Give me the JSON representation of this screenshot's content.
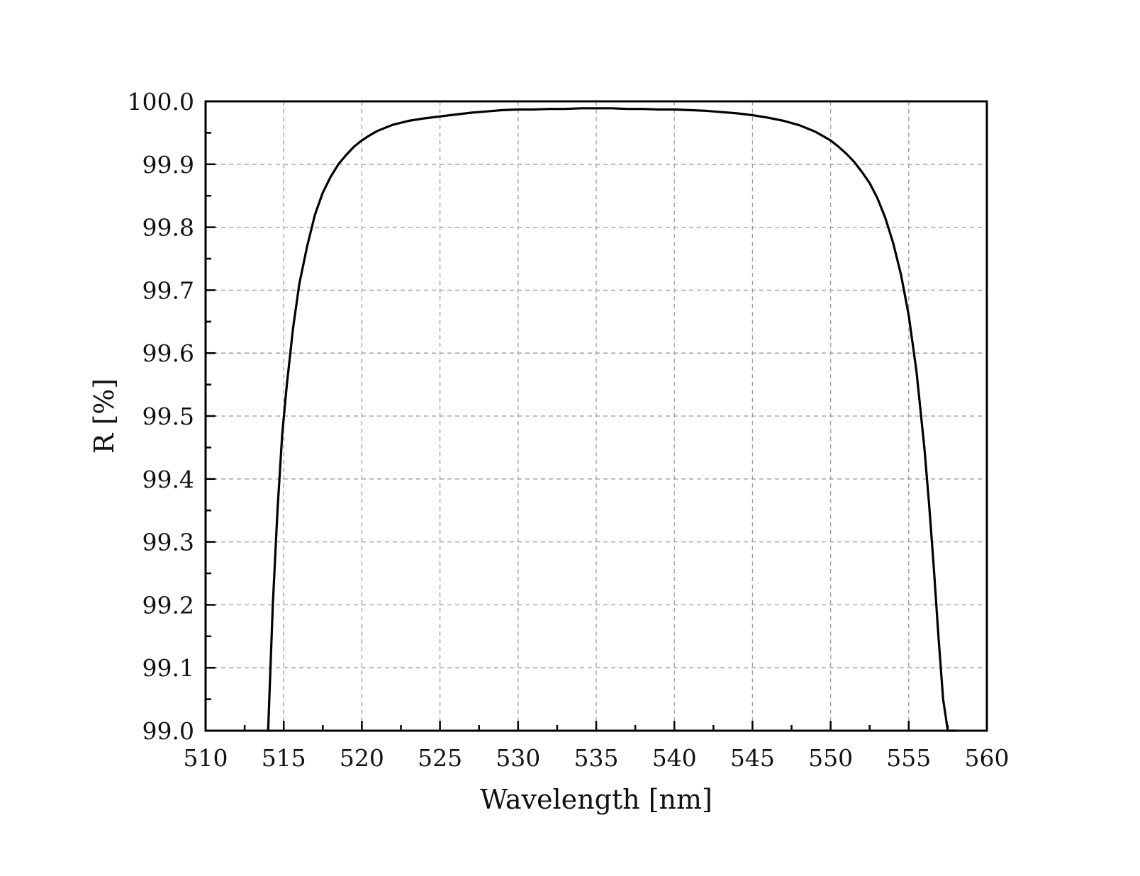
{
  "chart_data": {
    "type": "line",
    "title": "",
    "xlabel": "Wavelength [nm]",
    "ylabel": "R [%]",
    "xlim": [
      510,
      560
    ],
    "ylim": [
      99.0,
      100.0
    ],
    "x_ticks": [
      "510",
      "515",
      "520",
      "525",
      "530",
      "535",
      "540",
      "545",
      "550",
      "555",
      "560"
    ],
    "y_ticks": [
      "99.0",
      "99.1",
      "99.2",
      "99.3",
      "99.4",
      "99.5",
      "99.6",
      "99.7",
      "99.8",
      "99.9",
      "100.0"
    ],
    "grid": true,
    "legend": "none",
    "line_color": "#000000",
    "series": [
      {
        "x": [
          514.0,
          514.3,
          514.6,
          514.9,
          515.2,
          515.6,
          516.0,
          516.5,
          517.0,
          517.5,
          518.0,
          518.5,
          519.0,
          519.5,
          520.0,
          520.5,
          521.0,
          522.0,
          523.0,
          524.0,
          525.0,
          526.0,
          527.0,
          528.0,
          529.0,
          530.0,
          531.0,
          532.0,
          533.0,
          534.0,
          535.0,
          536.0,
          537.0,
          538.0,
          539.0,
          540.0,
          541.0,
          542.0,
          543.0,
          544.0,
          545.0,
          546.0,
          547.0,
          548.0,
          549.0,
          550.0,
          550.5,
          551.0,
          551.5,
          552.0,
          552.5,
          553.0,
          553.5,
          554.0,
          554.5,
          555.0,
          555.5,
          556.0,
          556.3,
          556.6,
          556.9,
          557.2,
          557.5,
          557.8,
          558.0
        ],
        "y": [
          99.0,
          99.2,
          99.35,
          99.47,
          99.55,
          99.64,
          99.71,
          99.77,
          99.82,
          99.855,
          99.88,
          99.9,
          99.915,
          99.928,
          99.938,
          99.946,
          99.953,
          99.963,
          99.969,
          99.973,
          99.976,
          99.979,
          99.982,
          99.984,
          99.986,
          99.987,
          99.987,
          99.988,
          99.988,
          99.989,
          99.989,
          99.989,
          99.988,
          99.988,
          99.987,
          99.987,
          99.986,
          99.985,
          99.983,
          99.981,
          99.978,
          99.974,
          99.969,
          99.962,
          99.952,
          99.938,
          99.928,
          99.917,
          99.904,
          99.888,
          99.87,
          99.846,
          99.815,
          99.775,
          99.725,
          99.66,
          99.57,
          99.45,
          99.36,
          99.26,
          99.15,
          99.05,
          99.0,
          99.0,
          99.0
        ]
      }
    ]
  }
}
